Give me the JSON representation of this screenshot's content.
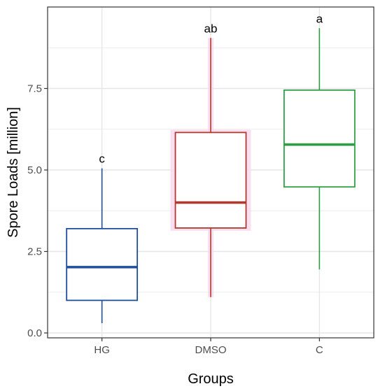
{
  "chart_data": {
    "type": "box",
    "title": "",
    "xlabel": "Groups",
    "ylabel": "Spore Loads [million]",
    "ylim": [
      -0.15,
      10.0
    ],
    "y_ticks": [
      0.0,
      2.5,
      5.0,
      7.5
    ],
    "y_tick_labels": [
      "0.0",
      "2.5",
      "5.0",
      "7.5"
    ],
    "grid": true,
    "legend": "none",
    "categories": [
      "HG",
      "DMSO",
      "C"
    ],
    "boxes": [
      {
        "group": "HG",
        "min": 0.3,
        "q1": 1.0,
        "median": 2.02,
        "q3": 3.2,
        "max": 5.05,
        "significance": "c",
        "color": "#1f4e9c"
      },
      {
        "group": "DMSO",
        "min": 1.1,
        "q1": 3.22,
        "median": 4.0,
        "q3": 6.15,
        "max": 9.05,
        "significance": "ab",
        "color": "#b03a2e"
      },
      {
        "group": "C",
        "min": 1.95,
        "q1": 4.48,
        "median": 5.78,
        "q3": 7.45,
        "max": 9.35,
        "significance": "a",
        "color": "#2e9e44"
      }
    ]
  },
  "colors": {
    "grid": "#e6e6e6",
    "panel_border": "#333333",
    "dmso_highlight": "#f9d9ee"
  }
}
